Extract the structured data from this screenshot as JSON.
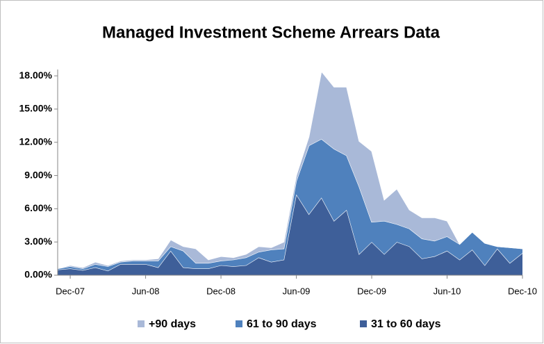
{
  "chart_data": {
    "type": "stacked_area",
    "title": "Managed Investment Scheme Arrears Data",
    "categories": [
      null,
      "Dec-07",
      null,
      null,
      null,
      null,
      null,
      "Jun-08",
      null,
      null,
      null,
      null,
      null,
      "Dec-08",
      null,
      null,
      null,
      null,
      null,
      "Jun-09",
      null,
      null,
      null,
      null,
      null,
      "Dec-09",
      null,
      null,
      null,
      null,
      null,
      "Jun-10",
      null,
      null,
      null,
      null,
      null,
      "Dec-10"
    ],
    "series": [
      {
        "name": "31 to 60 days",
        "color": "#3e5f99",
        "values": [
          0.5,
          0.6,
          0.45,
          0.7,
          0.4,
          1.0,
          1.0,
          1.0,
          0.7,
          2.2,
          0.7,
          0.6,
          0.6,
          0.9,
          0.8,
          0.9,
          1.6,
          1.2,
          1.4,
          7.3,
          5.5,
          7.0,
          4.9,
          5.9,
          1.9,
          3.0,
          1.9,
          3.0,
          2.6,
          1.5,
          1.7,
          2.2,
          1.4,
          2.3,
          0.9,
          2.4,
          1.1,
          2.0
        ]
      },
      {
        "name": "61 to 90 days",
        "color": "#4f81bd",
        "values": [
          0.1,
          0.2,
          0.15,
          0.3,
          0.4,
          0.2,
          0.3,
          0.3,
          0.6,
          0.4,
          1.5,
          0.5,
          0.5,
          0.4,
          0.6,
          0.7,
          0.5,
          1.1,
          1.0,
          1.2,
          6.2,
          5.3,
          6.5,
          4.9,
          6.1,
          1.8,
          3.0,
          1.6,
          1.6,
          1.8,
          1.4,
          1.3,
          1.4,
          1.6,
          2.0,
          0.2,
          1.4,
          0.4
        ]
      },
      {
        "name": "+90 days",
        "color": "#a9b9d8",
        "values": [
          0,
          0.1,
          0.1,
          0.2,
          0.1,
          0.1,
          0.1,
          0.1,
          0.2,
          0.6,
          0.4,
          1.3,
          0.3,
          0.4,
          0.2,
          0.3,
          0.5,
          0.2,
          0.6,
          0.5,
          0.8,
          6.1,
          5.6,
          6.2,
          4.1,
          6.4,
          1.9,
          3.2,
          1.7,
          1.9,
          2.1,
          1.4,
          0,
          0,
          0,
          0,
          0,
          0
        ]
      }
    ],
    "ylim": [
      0,
      19.2
    ],
    "yticks": [
      {
        "value": 0,
        "label": "0.00%"
      },
      {
        "value": 3,
        "label": "3.00%"
      },
      {
        "value": 6,
        "label": "6.00%"
      },
      {
        "value": 9,
        "label": "9.00%"
      },
      {
        "value": 12,
        "label": "12.00%"
      },
      {
        "value": 15,
        "label": "15.00%"
      },
      {
        "value": 18,
        "label": "18.00%"
      }
    ],
    "legend": "bottom"
  }
}
